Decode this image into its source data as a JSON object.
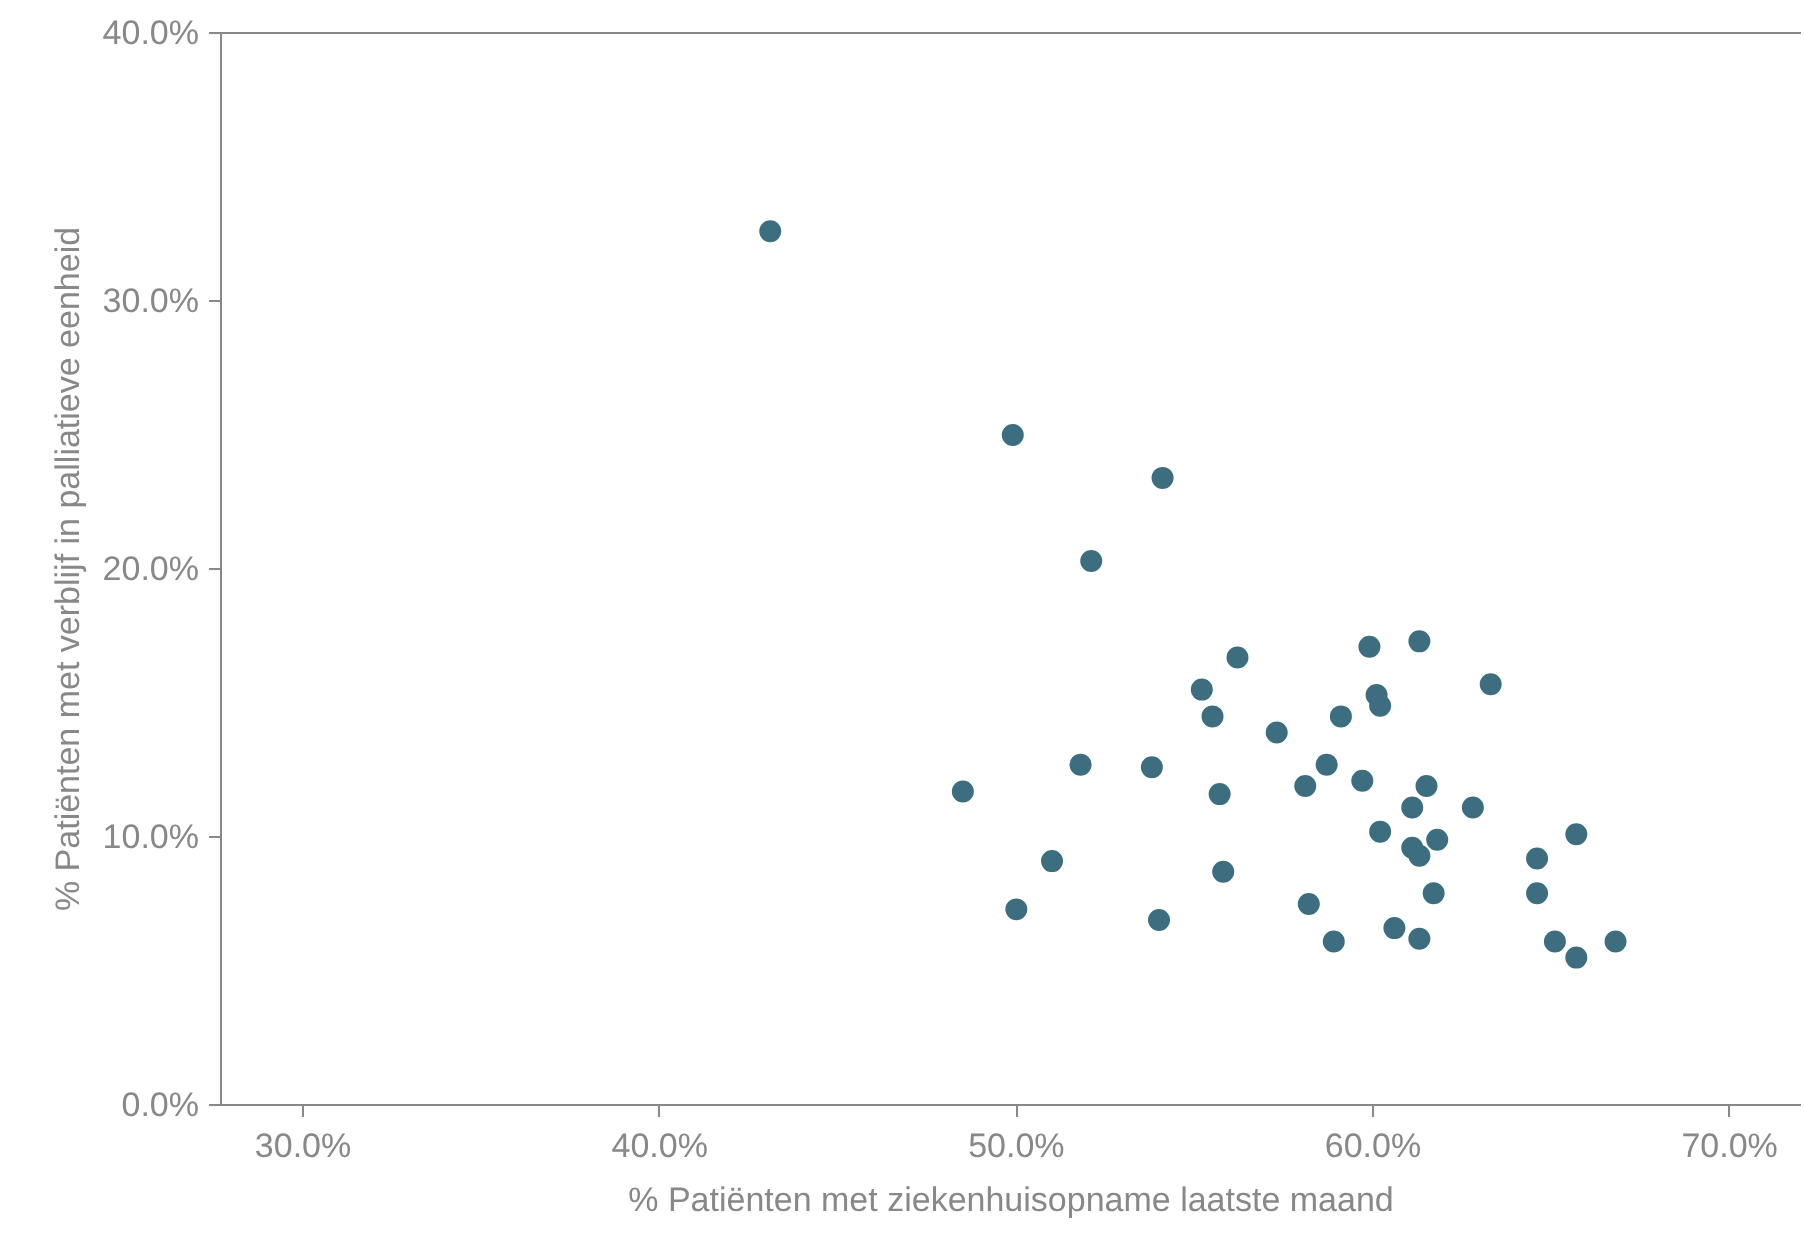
{
  "chart_data": {
    "type": "scatter",
    "xlabel": "% Patiënten met ziekenhuisopname laatste maand",
    "ylabel": "% Patiënten met verblijf in palliatieve eenheid",
    "series": [
      {
        "color": "#3d6e80",
        "x": [
          43.1,
          49.9,
          54.1,
          52.1,
          56.2,
          59.9,
          61.3,
          63.3,
          55.2,
          55.5,
          60.1,
          60.2,
          59.1,
          57.3,
          51.8,
          53.8,
          58.7,
          48.5,
          55.7,
          58.1,
          59.7,
          61.5,
          61.1,
          62.8,
          60.2,
          61.8,
          65.7,
          61.1,
          61.3,
          64.6,
          51.0,
          55.8,
          61.7,
          64.6,
          50.0,
          58.2,
          54.0,
          60.6,
          58.9,
          61.3,
          65.1,
          66.8,
          65.7
        ],
        "values": [
          32.6,
          25.0,
          23.4,
          20.3,
          16.7,
          17.1,
          17.3,
          15.7,
          15.5,
          14.5,
          15.3,
          14.9,
          14.5,
          13.9,
          12.7,
          12.6,
          12.7,
          11.7,
          11.6,
          11.9,
          12.1,
          11.9,
          11.1,
          11.1,
          10.2,
          9.9,
          10.1,
          9.6,
          9.3,
          9.2,
          9.1,
          8.7,
          7.9,
          7.9,
          7.3,
          7.5,
          6.9,
          6.6,
          6.1,
          6.2,
          6.1,
          6.1,
          5.5
        ]
      }
    ],
    "xlim": [
      27.7,
      72
    ],
    "ylim": [
      0,
      40
    ],
    "xticks": [
      {
        "value": 30,
        "label": "30.0%"
      },
      {
        "value": 40,
        "label": "40.0%"
      },
      {
        "value": 50,
        "label": "50.0%"
      },
      {
        "value": 60,
        "label": "60.0%"
      },
      {
        "value": 70,
        "label": "70.0%"
      }
    ],
    "yticks": [
      {
        "value": 0,
        "label": "0.0%"
      },
      {
        "value": 10,
        "label": "10.0%"
      },
      {
        "value": 20,
        "label": "20.0%"
      },
      {
        "value": 30,
        "label": "30.0%"
      },
      {
        "value": 40,
        "label": "40.0%"
      }
    ],
    "grid": false,
    "marker": "circle"
  }
}
